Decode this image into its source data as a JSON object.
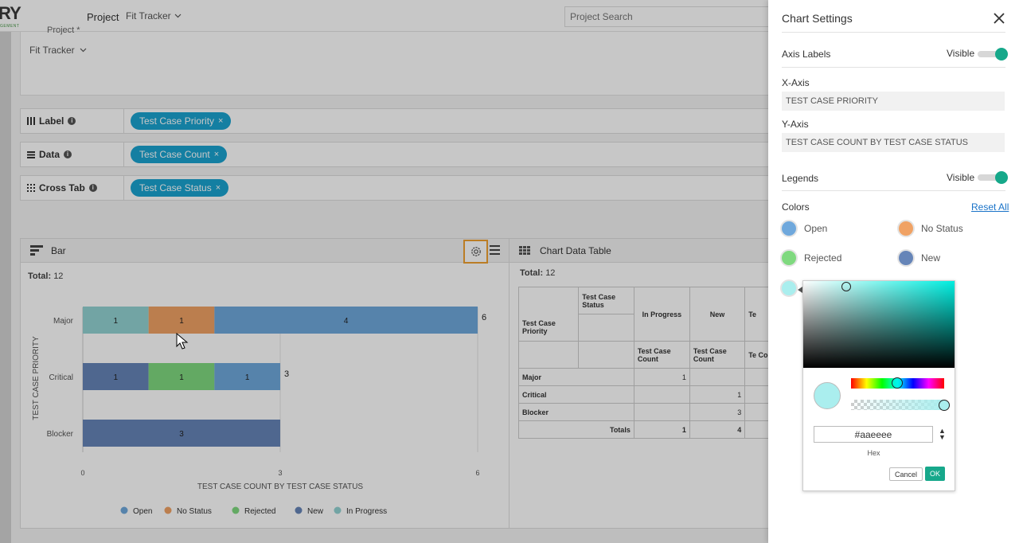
{
  "topbar": {
    "logo_text": "RY",
    "logo_sub": "GEMENT",
    "project_label": "Project",
    "project_value": "Fit Tracker",
    "search_placeholder": "Project Search"
  },
  "filters": {
    "project_label_clipped": "Project *",
    "project_value": "Fit Tracker"
  },
  "config_rows": [
    {
      "label": "Label",
      "chip": "Test Case Priority"
    },
    {
      "label": "Data",
      "chip": "Test Case Count"
    },
    {
      "label": "Cross Tab",
      "chip": "Test Case Status"
    }
  ],
  "chart_panel": {
    "title": "Bar",
    "total_label": "Total:",
    "total_value": "12"
  },
  "chart_data": {
    "type": "bar",
    "orientation": "horizontal",
    "stacked": true,
    "categories": [
      "Major",
      "Critical",
      "Blocker"
    ],
    "series": [
      {
        "name": "In Progress",
        "color": "#93d2d2",
        "values": [
          1,
          0,
          0
        ]
      },
      {
        "name": "No Status",
        "color": "#f0a264",
        "values": [
          1,
          0,
          0
        ]
      },
      {
        "name": "Open",
        "color": "#6fa8dc",
        "values": [
          4,
          1,
          0
        ]
      },
      {
        "name": "New",
        "color": "#6685b8",
        "values": [
          0,
          1,
          3
        ]
      },
      {
        "name": "Rejected",
        "color": "#7fd97f",
        "values": [
          0,
          1,
          0
        ]
      }
    ],
    "segment_order": [
      [
        "In Progress",
        "No Status",
        "Open"
      ],
      [
        "New",
        "Rejected",
        "Open"
      ],
      [
        "New"
      ]
    ],
    "totals": [
      6,
      3,
      ""
    ],
    "xlabel": "TEST CASE COUNT BY TEST CASE STATUS",
    "ylabel": "TEST CASE PRIORITY",
    "xlim": [
      0,
      6
    ],
    "xticks": [
      0,
      3,
      6
    ],
    "grid": true,
    "legend": [
      "Open",
      "No Status",
      "Rejected",
      "New",
      "In Progress"
    ],
    "legend_position": "bottom"
  },
  "data_table": {
    "title": "Chart Data Table",
    "total_label": "Total:",
    "total_value": "12",
    "corner_top": "Test Case Status",
    "corner_bottom": "Test Case Priority",
    "status_cols": [
      "In Progress",
      "New",
      "Te"
    ],
    "subheaders": [
      "Test Case Count",
      "Test Case Count",
      "Te Co"
    ],
    "rows": [
      {
        "label": "Major",
        "values": [
          "1",
          "",
          ""
        ]
      },
      {
        "label": "Critical",
        "values": [
          "",
          "1",
          ""
        ]
      },
      {
        "label": "Blocker",
        "values": [
          "",
          "3",
          ""
        ]
      }
    ],
    "totals_label": "Totals",
    "totals_values": [
      "1",
      "4",
      ""
    ]
  },
  "drawer": {
    "title": "Chart Settings",
    "axis_labels": {
      "title": "Axis Labels",
      "visible_label": "Visible"
    },
    "x_axis": {
      "label": "X-Axis",
      "value": "TEST CASE PRIORITY"
    },
    "y_axis": {
      "label": "Y-Axis",
      "value": "TEST CASE COUNT BY TEST CASE STATUS"
    },
    "legends": {
      "title": "Legends",
      "visible_label": "Visible"
    },
    "colors": {
      "title": "Colors",
      "reset": "Reset All",
      "items": [
        {
          "name": "Open",
          "color": "#6fa8dc"
        },
        {
          "name": "No Status",
          "color": "#f0a264"
        },
        {
          "name": "Rejected",
          "color": "#7fd97f"
        },
        {
          "name": "New",
          "color": "#6685b8"
        }
      ],
      "active_color": "#aaeeee"
    },
    "picker": {
      "hex_value": "#aaeeee",
      "hex_label": "Hex",
      "cancel": "Cancel",
      "ok": "OK"
    }
  }
}
